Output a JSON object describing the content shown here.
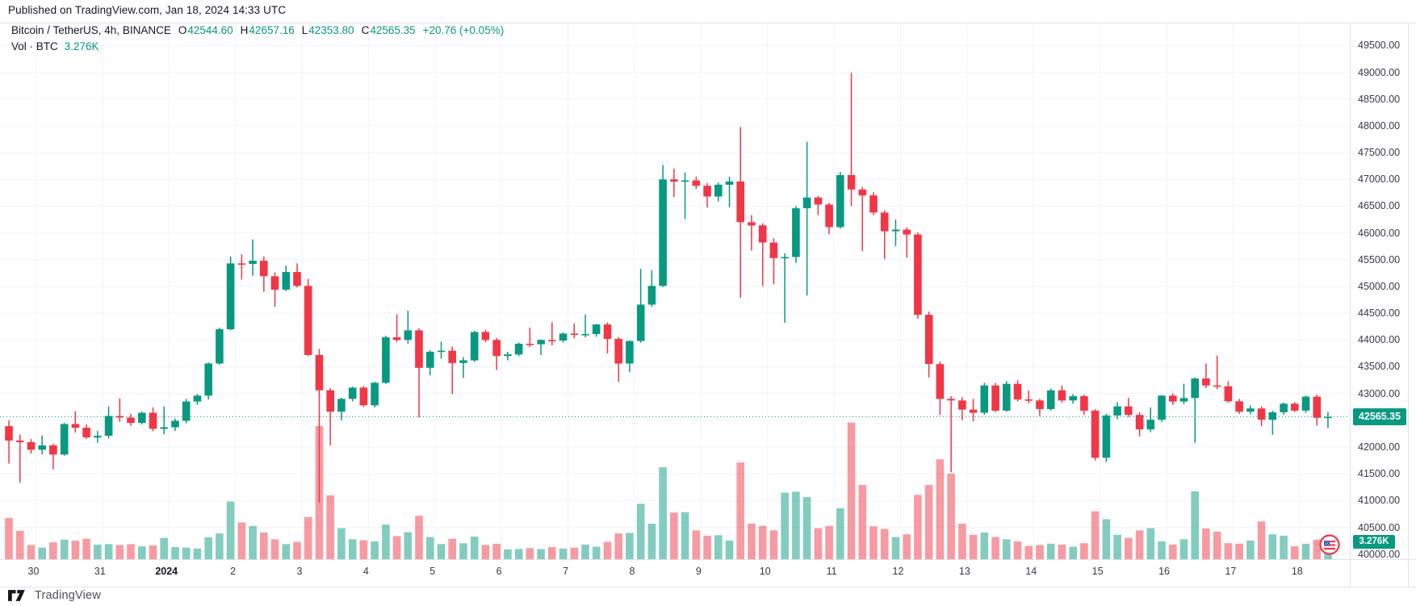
{
  "published_bar": {
    "text": "Published on TradingView.com, Jan 18, 2024 14:33 UTC"
  },
  "header": {
    "symbol_title": "Bitcoin / TetherUS, 4h, BINANCE",
    "ohlc": [
      {
        "label": "O",
        "value": "42544.60"
      },
      {
        "label": "H",
        "value": "42657.16"
      },
      {
        "label": "L",
        "value": "42353.80"
      },
      {
        "label": "C",
        "value": "42565.35"
      }
    ],
    "change": "+20.76 (+0.05%)",
    "vol_label": "Vol · BTC",
    "vol_value": "3.276K"
  },
  "price_axis": {
    "last_price_label": "42565.35",
    "last_volume_label": "3.276K"
  },
  "event_icon_name": "us-flag-economic-event",
  "footer": {
    "brand": "TradingView"
  },
  "colors": {
    "up": "#089981",
    "down": "#F23645",
    "vol_up": "rgba(8,153,129,0.5)",
    "vol_down": "rgba(242,54,69,0.5)",
    "grid": "#f0f3fa",
    "axis_text": "#363a45",
    "label_bg": "#089981",
    "dotted_line": "#089981"
  },
  "chart_data": {
    "type": "candlestick_with_volume",
    "title": "Bitcoin / TetherUS, 4h, BINANCE",
    "interval": "4h",
    "exchange": "BINANCE",
    "legend_ohlc": {
      "o": 42544.6,
      "h": 42657.16,
      "l": 42353.8,
      "c": 42565.35,
      "change": 20.76,
      "change_pct": 0.05
    },
    "last_price": 42565.35,
    "last_volume_k": 3.276,
    "volume_unit": "K BTC",
    "price_ticks": [
      40000,
      40500,
      41000,
      41500,
      42000,
      42500,
      43000,
      43500,
      44000,
      44500,
      45000,
      45500,
      46000,
      46500,
      47000,
      47500,
      48000,
      48500,
      49000,
      49500
    ],
    "day_ticks": [
      {
        "bar": 2,
        "label": "30"
      },
      {
        "bar": 8,
        "label": "31"
      },
      {
        "bar": 14,
        "label": "2024",
        "bold": true
      },
      {
        "bar": 20,
        "label": "2"
      },
      {
        "bar": 26,
        "label": "3"
      },
      {
        "bar": 32,
        "label": "4"
      },
      {
        "bar": 38,
        "label": "5"
      },
      {
        "bar": 44,
        "label": "6"
      },
      {
        "bar": 50,
        "label": "7"
      },
      {
        "bar": 56,
        "label": "8"
      },
      {
        "bar": 62,
        "label": "9"
      },
      {
        "bar": 68,
        "label": "10"
      },
      {
        "bar": 74,
        "label": "11"
      },
      {
        "bar": 80,
        "label": "12"
      },
      {
        "bar": 86,
        "label": "13"
      },
      {
        "bar": 92,
        "label": "14"
      },
      {
        "bar": 98,
        "label": "15"
      },
      {
        "bar": 104,
        "label": "16"
      },
      {
        "bar": 110,
        "label": "17"
      },
      {
        "bar": 116,
        "label": "18"
      }
    ],
    "bars_format": [
      "open",
      "high",
      "low",
      "close",
      "volume_k"
    ],
    "bars": [
      [
        42390,
        42500,
        41690,
        42120,
        9.3
      ],
      [
        42120,
        42230,
        41330,
        42090,
        6.4
      ],
      [
        42090,
        42150,
        41880,
        41950,
        3.2
      ],
      [
        41950,
        42215,
        41860,
        42030,
        2.6
      ],
      [
        42030,
        42060,
        41580,
        41860,
        3.8
      ],
      [
        41860,
        42450,
        41840,
        42430,
        4.4
      ],
      [
        42430,
        42670,
        42270,
        42360,
        4.2
      ],
      [
        42360,
        42420,
        42150,
        42180,
        4.6
      ],
      [
        42180,
        42300,
        42080,
        42210,
        3.3
      ],
      [
        42210,
        42760,
        42160,
        42580,
        3.4
      ],
      [
        42580,
        42910,
        42470,
        42550,
        3.2
      ],
      [
        42550,
        42620,
        42400,
        42450,
        3.4
      ],
      [
        42450,
        42660,
        42420,
        42640,
        2.9
      ],
      [
        42640,
        42740,
        42300,
        42340,
        3.1
      ],
      [
        42340,
        42760,
        42240,
        42370,
        4.8
      ],
      [
        42370,
        42530,
        42300,
        42490,
        2.7
      ],
      [
        42490,
        42900,
        42440,
        42850,
        2.6
      ],
      [
        42850,
        42990,
        42790,
        42960,
        2.4
      ],
      [
        42960,
        43580,
        42890,
        43560,
        4.9
      ],
      [
        43560,
        44230,
        43540,
        44200,
        5.8
      ],
      [
        44200,
        45560,
        44180,
        45430,
        13.0
      ],
      [
        45430,
        45600,
        45130,
        45420,
        8.3
      ],
      [
        45420,
        45880,
        45200,
        45480,
        7.5
      ],
      [
        45480,
        45560,
        44900,
        45190,
        6.0
      ],
      [
        45190,
        45260,
        44620,
        44940,
        4.5
      ],
      [
        44940,
        45390,
        44910,
        45270,
        3.4
      ],
      [
        45270,
        45430,
        44980,
        45010,
        3.9
      ],
      [
        45010,
        45140,
        43700,
        43720,
        9.5
      ],
      [
        43720,
        43830,
        40960,
        43060,
        30.0
      ],
      [
        43060,
        43100,
        42030,
        42660,
        14.4
      ],
      [
        42660,
        42920,
        42500,
        42900,
        7.0
      ],
      [
        42900,
        43130,
        42850,
        43110,
        4.5
      ],
      [
        43110,
        43140,
        42750,
        42780,
        4.3
      ],
      [
        42780,
        43220,
        42740,
        43200,
        4.0
      ],
      [
        43200,
        44080,
        43180,
        44050,
        7.8
      ],
      [
        44050,
        44480,
        43960,
        44000,
        5.2
      ],
      [
        44000,
        44550,
        43930,
        44180,
        6.1
      ],
      [
        44180,
        44220,
        42550,
        43480,
        9.8
      ],
      [
        43480,
        43810,
        43340,
        43780,
        5.0
      ],
      [
        43780,
        43970,
        43650,
        43800,
        3.4
      ],
      [
        43800,
        43880,
        42990,
        43570,
        4.6
      ],
      [
        43570,
        43680,
        43290,
        43620,
        3.6
      ],
      [
        43620,
        44170,
        43590,
        44150,
        5.1
      ],
      [
        44150,
        44190,
        43960,
        44000,
        3.2
      ],
      [
        44000,
        44040,
        43440,
        43700,
        3.5
      ],
      [
        43700,
        43780,
        43620,
        43730,
        2.2
      ],
      [
        43730,
        43950,
        43700,
        43930,
        2.3
      ],
      [
        43930,
        44230,
        43870,
        43920,
        2.5
      ],
      [
        43920,
        44010,
        43720,
        44000,
        2.3
      ],
      [
        44000,
        44330,
        43900,
        43990,
        2.7
      ],
      [
        43990,
        44140,
        43950,
        44120,
        2.4
      ],
      [
        44120,
        44310,
        44030,
        44100,
        2.6
      ],
      [
        44100,
        44475,
        44050,
        44110,
        3.3
      ],
      [
        44110,
        44300,
        44060,
        44290,
        2.8
      ],
      [
        44290,
        44330,
        43750,
        44020,
        3.9
      ],
      [
        44020,
        44050,
        43220,
        43560,
        5.8
      ],
      [
        43560,
        43990,
        43400,
        43980,
        5.9
      ],
      [
        43980,
        45330,
        43950,
        44660,
        12.5
      ],
      [
        44660,
        45300,
        44620,
        45010,
        8.0
      ],
      [
        45010,
        47270,
        44990,
        47000,
        20.7
      ],
      [
        47000,
        47200,
        46670,
        46960,
        10.5
      ],
      [
        46960,
        47130,
        46260,
        46980,
        10.6
      ],
      [
        46980,
        47050,
        46820,
        46880,
        6.5
      ],
      [
        46880,
        46930,
        46475,
        46680,
        5.3
      ],
      [
        46680,
        46940,
        46590,
        46900,
        5.4
      ],
      [
        46900,
        47050,
        46480,
        46960,
        4.2
      ],
      [
        46960,
        47980,
        44790,
        46200,
        21.8
      ],
      [
        46200,
        46330,
        45670,
        46140,
        8.0
      ],
      [
        46140,
        46180,
        45010,
        45820,
        7.5
      ],
      [
        45820,
        45900,
        45040,
        45530,
        6.5
      ],
      [
        45530,
        45620,
        44320,
        45550,
        15.0
      ],
      [
        45550,
        46500,
        45440,
        46460,
        15.2
      ],
      [
        46460,
        47700,
        44830,
        46660,
        14.0
      ],
      [
        46660,
        46690,
        46330,
        46530,
        7.0
      ],
      [
        46530,
        46560,
        45980,
        46110,
        7.5
      ],
      [
        46110,
        47140,
        46080,
        47080,
        11.5
      ],
      [
        47080,
        48990,
        46500,
        46810,
        30.8
      ],
      [
        46810,
        46860,
        45660,
        46700,
        16.7
      ],
      [
        46700,
        46760,
        46330,
        46380,
        7.4
      ],
      [
        46380,
        46420,
        45510,
        46030,
        6.8
      ],
      [
        46030,
        46250,
        45750,
        46060,
        5.0
      ],
      [
        46060,
        46100,
        45540,
        45970,
        5.6
      ],
      [
        45970,
        46010,
        44400,
        44470,
        14.5
      ],
      [
        44470,
        44530,
        43300,
        43550,
        16.7
      ],
      [
        43550,
        43600,
        42600,
        42900,
        22.5
      ],
      [
        42900,
        42950,
        41530,
        42870,
        19.3
      ],
      [
        42870,
        42930,
        42500,
        42700,
        8.0
      ],
      [
        42700,
        42900,
        42480,
        42640,
        5.5
      ],
      [
        42640,
        43200,
        42600,
        43150,
        6.0
      ],
      [
        43150,
        43200,
        42650,
        42680,
        5.0
      ],
      [
        42680,
        43230,
        42660,
        43180,
        4.5
      ],
      [
        43180,
        43250,
        42850,
        42890,
        4.0
      ],
      [
        42890,
        43050,
        42820,
        42870,
        3.0
      ],
      [
        42870,
        42900,
        42580,
        42710,
        3.2
      ],
      [
        42710,
        43090,
        42680,
        43060,
        3.5
      ],
      [
        43060,
        43150,
        42830,
        42870,
        3.3
      ],
      [
        42870,
        42990,
        42810,
        42950,
        2.8
      ],
      [
        42950,
        42980,
        42600,
        42680,
        3.6
      ],
      [
        42680,
        42710,
        41750,
        41800,
        10.8
      ],
      [
        41800,
        42620,
        41720,
        42590,
        9.0
      ],
      [
        42590,
        42840,
        42520,
        42760,
        5.5
      ],
      [
        42760,
        42920,
        42560,
        42600,
        4.8
      ],
      [
        42600,
        42650,
        42200,
        42330,
        6.5
      ],
      [
        42330,
        42740,
        42280,
        42510,
        7.0
      ],
      [
        42510,
        42970,
        42470,
        42960,
        4.0
      ],
      [
        42960,
        43000,
        42790,
        42850,
        3.3
      ],
      [
        42850,
        43180,
        42800,
        42915,
        4.5
      ],
      [
        42915,
        43300,
        42080,
        43280,
        15.3
      ],
      [
        43280,
        43560,
        43100,
        43150,
        6.9
      ],
      [
        43150,
        43710,
        43080,
        43135,
        6.2
      ],
      [
        43135,
        43230,
        42830,
        42855,
        3.6
      ],
      [
        42855,
        42900,
        42620,
        42660,
        3.5
      ],
      [
        42660,
        42780,
        42610,
        42720,
        4.2
      ],
      [
        42720,
        42760,
        42390,
        42510,
        8.5
      ],
      [
        42510,
        42680,
        42230,
        42650,
        5.6
      ],
      [
        42650,
        42830,
        42600,
        42810,
        5.3
      ],
      [
        42810,
        42840,
        42660,
        42680,
        2.9
      ],
      [
        42680,
        42960,
        42640,
        42940,
        3.5
      ],
      [
        42940,
        42980,
        42400,
        42545,
        4.4
      ],
      [
        42544.6,
        42657.16,
        42353.8,
        42565.35,
        3.276
      ]
    ]
  }
}
